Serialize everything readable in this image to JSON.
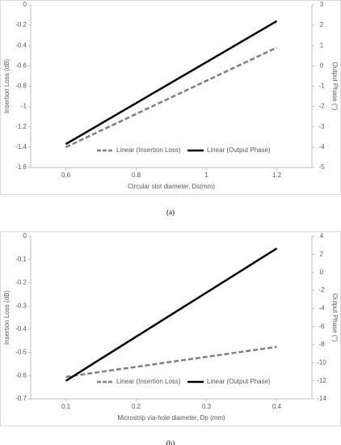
{
  "chart_data": [
    {
      "type": "line",
      "caption": "(a)",
      "xlabel": "Circular slot diameter, Ds(mm)",
      "ylabel": "Insertion Loss (dB)",
      "y2label": "Output Phase (°)",
      "x": [
        0.6,
        1.2
      ],
      "xlim": [
        0.5,
        1.3
      ],
      "xticks": [
        0.6,
        0.8,
        1,
        1.2
      ],
      "ylim": [
        -1.6,
        0
      ],
      "yticks": [
        0,
        -0.2,
        -0.4,
        -0.6,
        -0.8,
        -1,
        -1.2,
        -1.4,
        -1.6
      ],
      "y2lim": [
        -5,
        3
      ],
      "y2ticks": [
        3,
        2,
        1,
        0,
        -1,
        -2,
        -3,
        -4,
        -5
      ],
      "legend": "bottom",
      "series": [
        {
          "name": "Linear (Insertion Loss)",
          "color": "#7f7f7f",
          "dashed": true,
          "values": [
            -1.4,
            -0.42
          ]
        },
        {
          "name": "Linear (Output Phase)",
          "color": "#000000",
          "dashed": false,
          "axis": "y2",
          "values": [
            -3.85,
            2.2
          ]
        }
      ]
    },
    {
      "type": "line",
      "caption": "(b)",
      "xlabel": "Microstrip via-hole diameter, Dp (mm)",
      "ylabel": "Insertion Loss (dB)",
      "y2label": "Output Phase (°)",
      "x": [
        0.1,
        0.4
      ],
      "xlim": [
        0.05,
        0.45
      ],
      "xticks": [
        0.1,
        0.2,
        0.3,
        0.4
      ],
      "ylim": [
        -0.7,
        0
      ],
      "yticks": [
        0,
        -0.1,
        -0.2,
        -0.3,
        -0.4,
        -0.5,
        -0.6,
        -0.7
      ],
      "y2lim": [
        -14,
        4
      ],
      "y2ticks": [
        4,
        2,
        0,
        -2,
        -4,
        -6,
        -8,
        -10,
        -12,
        -14
      ],
      "legend": "bottom",
      "series": [
        {
          "name": "Linear (Insertion Loss)",
          "color": "#7f7f7f",
          "dashed": true,
          "values": [
            -0.605,
            -0.476
          ]
        },
        {
          "name": "Linear (Output Phase)",
          "color": "#000000",
          "dashed": false,
          "axis": "y2",
          "values": [
            -12,
            2.65
          ]
        }
      ]
    }
  ]
}
